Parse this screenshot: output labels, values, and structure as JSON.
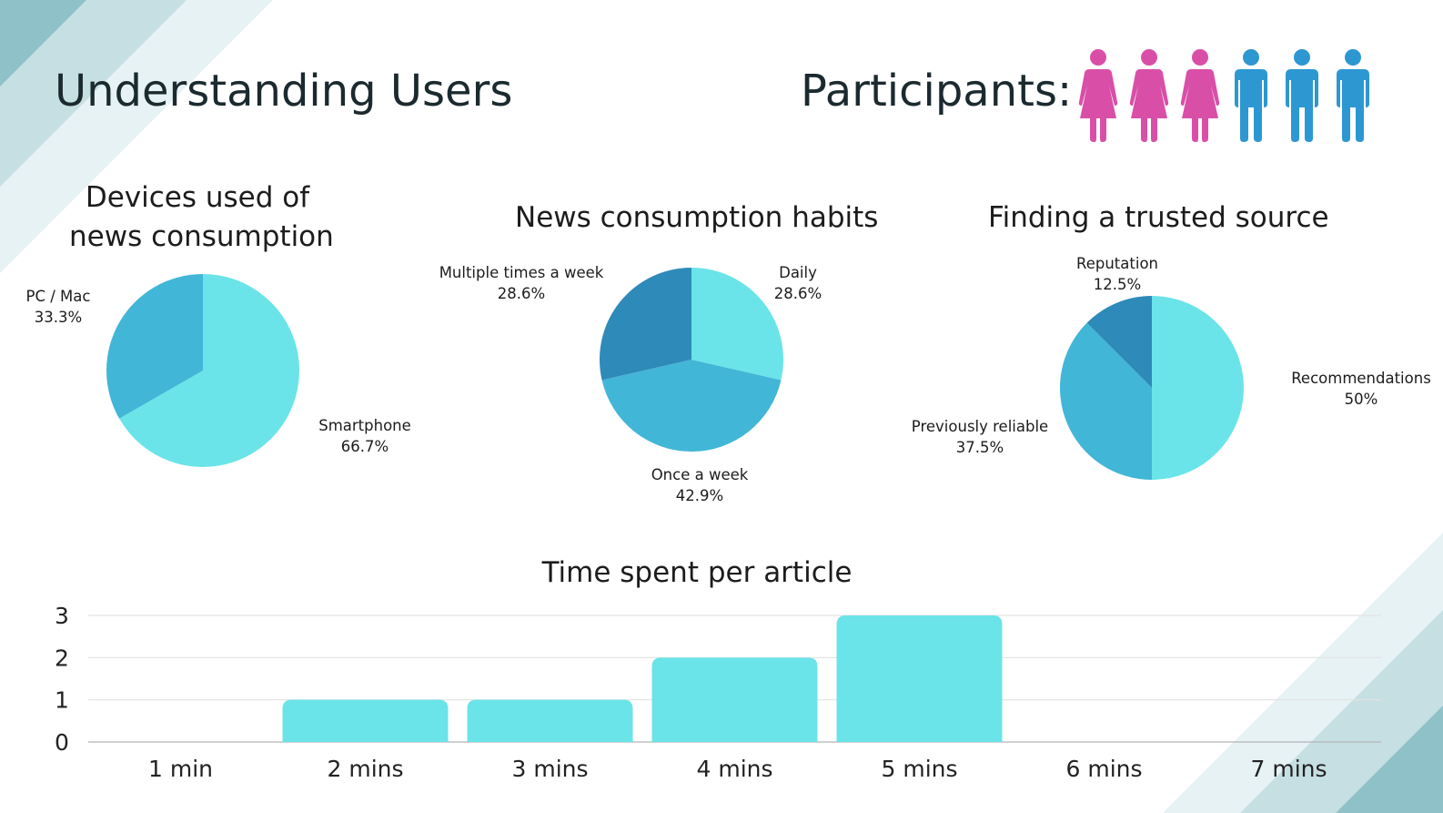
{
  "page": {
    "title": "Understanding Users",
    "participants_label": "Participants:",
    "participants": [
      "female-icon",
      "female-icon",
      "female-icon",
      "male-icon",
      "male-icon",
      "male-icon"
    ],
    "colors": {
      "female": "#d94fa8",
      "male": "#2d97d2",
      "light_teal": "#6ae4e8",
      "mid_blue": "#42b6d6",
      "dark_blue": "#2e8ab9",
      "decor_teal": "#8ec2c8"
    }
  },
  "chart_data": [
    {
      "type": "pie",
      "title_lines": [
        "Devices used of",
        "news consumption"
      ],
      "slices": [
        {
          "name": "Smartphone",
          "label": "66.7%",
          "value": 66.7,
          "color": "#6ae4e8"
        },
        {
          "name": "PC / Mac",
          "label": "33.3%",
          "value": 33.3,
          "color": "#42b6d6"
        }
      ]
    },
    {
      "type": "pie",
      "title_lines": [
        "News consumption habits"
      ],
      "slices": [
        {
          "name": "Daily",
          "label": "28.6%",
          "value": 28.6,
          "color": "#6ae4e8"
        },
        {
          "name": "Once a week",
          "label": "42.9%",
          "value": 42.9,
          "color": "#42b6d6"
        },
        {
          "name": "Multiple times a week",
          "label": "28.6%",
          "value": 28.6,
          "color": "#2e8ab9"
        }
      ]
    },
    {
      "type": "pie",
      "title_lines": [
        "Finding a trusted source"
      ],
      "slices": [
        {
          "name": "Recommendations",
          "label": "50%",
          "value": 50,
          "color": "#6ae4e8"
        },
        {
          "name": "Previously reliable",
          "label": "37.5%",
          "value": 37.5,
          "color": "#42b6d6"
        },
        {
          "name": "Reputation",
          "label": "12.5%",
          "value": 12.5,
          "color": "#2e8ab9"
        }
      ]
    },
    {
      "type": "bar",
      "title": "Time spent per article",
      "categories": [
        "1 min",
        "2 mins",
        "3 mins",
        "4 mins",
        "5 mins",
        "6 mins",
        "7 mins"
      ],
      "values": [
        0,
        1,
        1,
        2,
        3,
        0,
        0
      ],
      "yticks": [
        "0",
        "1",
        "2",
        "3"
      ],
      "ylim": [
        0,
        3
      ],
      "grid": true,
      "color": "#6ae4e8"
    }
  ]
}
